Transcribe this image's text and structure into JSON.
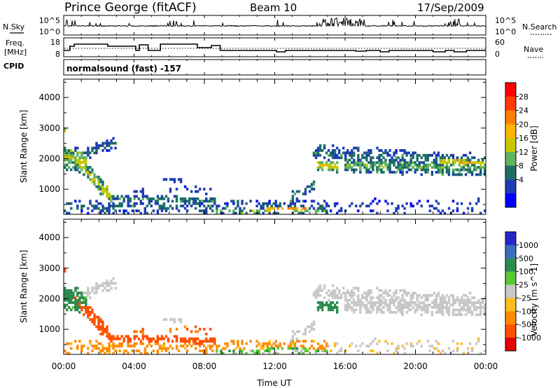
{
  "header": {
    "site": "Prince George (fitACF)",
    "beam": "Beam 10",
    "date": "17/Sep/2009"
  },
  "labels": {
    "nsky": "N.Sky",
    "freq_line1": "Freq.",
    "freq_line2": "[MHz]",
    "cpid": "CPID",
    "nsearch": "N.Search",
    "nave": "Nave",
    "cpid_value": "normalsound (fast) -157"
  },
  "nsky_axis": {
    "top": "10^5",
    "bottom": "10^0"
  },
  "nsearch_axis": {
    "top": "10^5",
    "bottom": "10^0"
  },
  "freq_axis": {
    "top": "18",
    "bottom": "8"
  },
  "nave_axis": {
    "top": "60",
    "bottom": "0"
  },
  "slant_axis": {
    "label": "Slant Range [km]",
    "ticks": [
      "4000",
      "3000",
      "2000",
      "1000"
    ]
  },
  "time_axis": {
    "label": "Time UT",
    "ticks": [
      "00:00",
      "04:00",
      "08:00",
      "12:00",
      "16:00",
      "20:00",
      "00:00"
    ]
  },
  "power_scale": {
    "label": "Power [dB]",
    "ticks": [
      "28",
      "24",
      "20",
      "16",
      "12",
      "8",
      "4"
    ],
    "colors": [
      "#ff0000",
      "#ff3c00",
      "#ff7d00",
      "#ffb400",
      "#c8c800",
      "#5fb45f",
      "#1e6e64",
      "#1e3cb4",
      "#0000ff"
    ]
  },
  "velocity_scale": {
    "label": "Velocity [m s^-1]",
    "ticks": [
      "1000",
      "500",
      "100",
      "25",
      "-25",
      "-100",
      "-500",
      "-1000"
    ],
    "colors": [
      "#2828c8",
      "#3c6ebe",
      "#2d8c50",
      "#5ac832",
      "#c8c8c8",
      "#ffbe1e",
      "#ff8c00",
      "#ff5000",
      "#e60000"
    ]
  },
  "chart_data": {
    "type": "heatmap",
    "x_range_hours": [
      0,
      24
    ],
    "range_km": [
      180,
      4600
    ],
    "power_color_range_db": [
      0,
      32
    ],
    "velocity_color_range": [
      -1000,
      1000
    ],
    "grid": false,
    "legend": "right"
  }
}
